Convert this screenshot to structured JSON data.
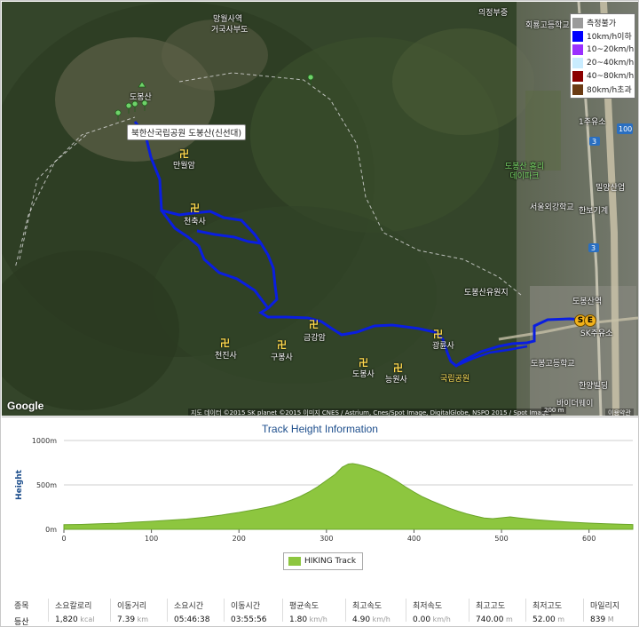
{
  "legend": {
    "items": [
      {
        "label": "측정불가",
        "color": "#9a9a9a"
      },
      {
        "label": "10km/h이하",
        "color": "#0000ff"
      },
      {
        "label": "10~20km/h",
        "color": "#9b30ff"
      },
      {
        "label": "20~40km/h",
        "color": "#c9ecff"
      },
      {
        "label": "40~80km/h",
        "color": "#8b0000"
      },
      {
        "label": "80km/h초과",
        "color": "#6b3b14"
      }
    ]
  },
  "map": {
    "tooltip": "북한산국립공원 도봉산(신선대)",
    "labels": [
      {
        "text": "망월사역",
        "cls": ""
      },
      {
        "text": "거국사부도",
        "cls": ""
      },
      {
        "text": "의정부중",
        "cls": ""
      },
      {
        "text": "회룡고등학교",
        "cls": ""
      },
      {
        "text": "도봉산",
        "cls": ""
      },
      {
        "text": "만월암",
        "cls": ""
      },
      {
        "text": "천축사",
        "cls": ""
      },
      {
        "text": "금강암",
        "cls": ""
      },
      {
        "text": "천진사",
        "cls": ""
      },
      {
        "text": "구봉사",
        "cls": ""
      },
      {
        "text": "도봉사",
        "cls": ""
      },
      {
        "text": "능원사",
        "cls": ""
      },
      {
        "text": "광륜사",
        "cls": ""
      },
      {
        "text": "국립공원",
        "cls": "yellow"
      },
      {
        "text": "도봉산 홈리데이파크",
        "cls": "green"
      },
      {
        "text": "서울외강학교",
        "cls": ""
      },
      {
        "text": "한보기계",
        "cls": ""
      },
      {
        "text": "밀양산업",
        "cls": ""
      },
      {
        "text": "도봉산유원지",
        "cls": ""
      },
      {
        "text": "도봉산역",
        "cls": ""
      },
      {
        "text": "SK주유소",
        "cls": ""
      },
      {
        "text": "도봉고등학교",
        "cls": ""
      },
      {
        "text": "한양빌딩",
        "cls": ""
      },
      {
        "text": "바이더웨이",
        "cls": ""
      },
      {
        "text": "1주유소",
        "cls": ""
      }
    ],
    "start_marker": "S",
    "end_marker": "E",
    "google": "Google",
    "copyright": "지도 데이터 ©2015 SK planet ©2015 이미지 CNES / Astrium, Cnes/Spot Image, DigitalGlobe, NSPO 2015 / Spot Image",
    "scale": "200 m",
    "terms": "이용약관",
    "road_badges": [
      "3",
      "100",
      "3"
    ]
  },
  "chart_data": {
    "type": "area",
    "title": "Track Height Information",
    "ylabel": "Height",
    "yticks": [
      "0m",
      "500m",
      "1000m"
    ],
    "ylim": [
      0,
      1000
    ],
    "xticks": [
      0,
      100,
      200,
      300,
      400,
      500,
      600
    ],
    "xlim": [
      0,
      650
    ],
    "grid": true,
    "legend_position": "bottom",
    "series": [
      {
        "name": "HIKING Track",
        "color": "#8dc63f",
        "points": [
          [
            0,
            52
          ],
          [
            20,
            55
          ],
          [
            40,
            62
          ],
          [
            60,
            68
          ],
          [
            80,
            80
          ],
          [
            100,
            90
          ],
          [
            120,
            102
          ],
          [
            140,
            115
          ],
          [
            160,
            135
          ],
          [
            180,
            160
          ],
          [
            200,
            190
          ],
          [
            220,
            225
          ],
          [
            240,
            265
          ],
          [
            250,
            295
          ],
          [
            260,
            330
          ],
          [
            270,
            370
          ],
          [
            280,
            420
          ],
          [
            290,
            480
          ],
          [
            300,
            550
          ],
          [
            310,
            620
          ],
          [
            318,
            700
          ],
          [
            325,
            735
          ],
          [
            330,
            740
          ],
          [
            336,
            730
          ],
          [
            342,
            715
          ],
          [
            350,
            690
          ],
          [
            360,
            650
          ],
          [
            370,
            600
          ],
          [
            380,
            545
          ],
          [
            390,
            480
          ],
          [
            400,
            420
          ],
          [
            410,
            365
          ],
          [
            420,
            320
          ],
          [
            430,
            280
          ],
          [
            440,
            240
          ],
          [
            450,
            205
          ],
          [
            460,
            175
          ],
          [
            470,
            150
          ],
          [
            480,
            128
          ],
          [
            490,
            120
          ],
          [
            500,
            130
          ],
          [
            510,
            140
          ],
          [
            520,
            128
          ],
          [
            540,
            108
          ],
          [
            560,
            92
          ],
          [
            580,
            80
          ],
          [
            600,
            70
          ],
          [
            620,
            62
          ],
          [
            640,
            56
          ],
          [
            650,
            54
          ]
        ]
      }
    ]
  },
  "stats": {
    "row_labels": [
      "종목",
      "등산"
    ],
    "columns": [
      {
        "label": "소요칼로리",
        "value": "1,820",
        "unit": "kcal"
      },
      {
        "label": "이동거리",
        "value": "7.39",
        "unit": "km"
      },
      {
        "label": "소요시간",
        "value": "05:46:38",
        "unit": ""
      },
      {
        "label": "이동시간",
        "value": "03:55:56",
        "unit": ""
      },
      {
        "label": "평균속도",
        "value": "1.80",
        "unit": "km/h"
      },
      {
        "label": "최고속도",
        "value": "4.90",
        "unit": "km/h"
      },
      {
        "label": "최저속도",
        "value": "0.00",
        "unit": "km/h"
      },
      {
        "label": "최고고도",
        "value": "740.00",
        "unit": "m"
      },
      {
        "label": "최저고도",
        "value": "52.00",
        "unit": "m"
      },
      {
        "label": "마일리지",
        "value": "839",
        "unit": "M"
      }
    ]
  }
}
